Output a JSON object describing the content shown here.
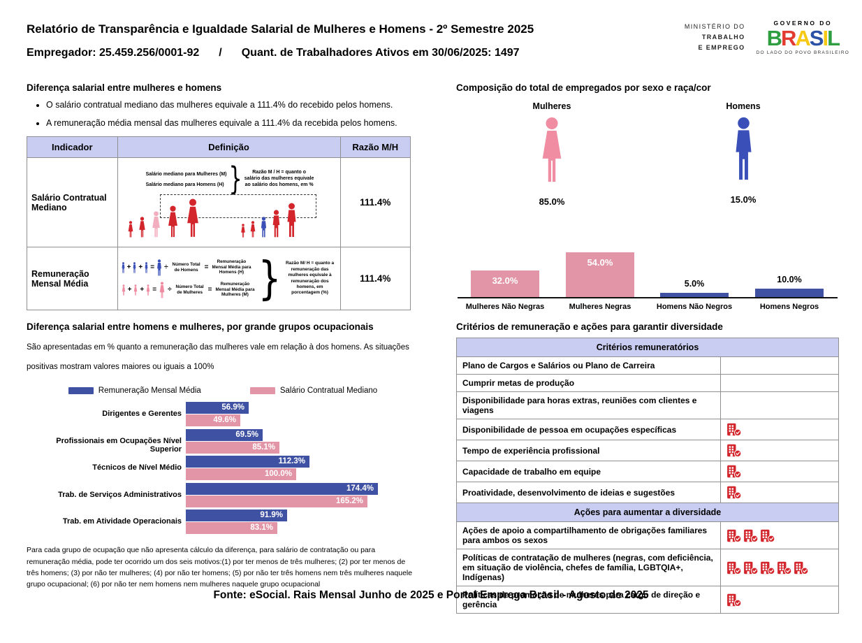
{
  "colors": {
    "blue": "#3F51A3",
    "blue_icon": "#3A50B8",
    "pink": "#E295A6",
    "pink_icon": "#F08DA2",
    "pink_light": "#F2AEBE",
    "red": "#D3262C",
    "header_bg": "#C9CDF1"
  },
  "header": {
    "title": "Relatório de Transparência e Igualdade Salarial de Mulheres e Homens - 2º Semestre 2025",
    "subtitle": {
      "employer": "Empregador: 25.459.256/0001-92",
      "separator": "/",
      "workers": "Quant. de Trabalhadores Ativos em 30/06/2025: 1497"
    },
    "ministry_lines": [
      "MINISTÉRIO DO",
      "TRABALHO",
      "E EMPREGO"
    ],
    "gov": {
      "top": "GOVERNO DO",
      "name": "BRASIL",
      "letter_colors": [
        "#2F9E41",
        "#E23B30",
        "#F6C915",
        "#2B52A5",
        "#F6C915",
        "#2F9E41"
      ],
      "tagline": "DO LADO DO POVO BRASILEIRO"
    }
  },
  "pay_gap": {
    "title": "Diferença salarial entre mulheres e homens",
    "bullets": [
      "O salário contratual mediano das mulheres equivale a 111.4% do recebido pelos homens.",
      "A remuneração média mensal das mulheres equivale a 111.4% da recebida pelos homens."
    ],
    "operators": {
      "plus": "+",
      "equals": "=",
      "divide": "÷",
      "brace": "}"
    },
    "table": {
      "headers": [
        "Indicador",
        "Definição",
        "Razão M/H"
      ],
      "rows": [
        {
          "indicator": "Salário Contratual Mediano",
          "definition": {
            "line1": "Salário mediano para Mulheres (M)",
            "line2": "Salário mediano para Homens (H)",
            "note": "Razão M / H = quanto o salário das mulheres equivale ao salário dos homens, em %"
          },
          "ratio": "111.4%"
        },
        {
          "indicator": "Remuneração Mensal Média",
          "definition": {
            "men_divisor": "Número Total de Homens",
            "men_result": "Remuneração Mensal Média para Homens (H)",
            "women_divisor": "Número Total de Mulheres",
            "women_result": "Remuneração Mensal Média para Mulheres (M)",
            "note": "Razão M/ H = quanto a remuneração das mulheres equivale à remuneração dos homens, em porcentagem (%)"
          },
          "ratio": "111.4%"
        }
      ]
    }
  },
  "composition": {
    "title": "Composição do total de empregados por sexo e raça/cor",
    "groups": [
      {
        "label": "Mulheres",
        "value": "85.0%"
      },
      {
        "label": "Homens",
        "value": "15.0%"
      }
    ],
    "chart_data": {
      "type": "bar",
      "categories": [
        "Mulheres Não Negras",
        "Mulheres Negras",
        "Homens Não Negros",
        "Homens Negros"
      ],
      "values": [
        32.0,
        54.0,
        5.0,
        10.0
      ],
      "labels": [
        "32.0%",
        "54.0%",
        "5.0%",
        "10.0%"
      ],
      "bar_color_keys": [
        "pink",
        "pink",
        "blue",
        "blue"
      ],
      "ylim": [
        0,
        100
      ],
      "grid": false
    }
  },
  "occupational": {
    "title": "Diferença salarial entre homens e mulheres, por grande grupos ocupacionais",
    "note": "São apresentadas em % quanto a remuneração das mulheres vale em relação à dos homens. As situações positivas mostram valores maiores ou iguais a 100%",
    "chart_data": {
      "type": "bar",
      "orientation": "horizontal",
      "categories": [
        "Dirigentes e Gerentes",
        "Profissionais em Ocupações Nível Superior",
        "Técnicos de Nível Médio",
        "Trab. de Serviços Administrativos",
        "Trab. em Atividade Operacionais"
      ],
      "series": [
        {
          "name": "Remuneração Mensal Média",
          "color_key": "blue",
          "values": [
            56.9,
            69.5,
            112.3,
            174.4,
            91.9
          ],
          "labels": [
            "56.9%",
            "69.5%",
            "112.3%",
            "174.4%",
            "91.9%"
          ]
        },
        {
          "name": "Salário Contratual Mediano",
          "color_key": "pink",
          "values": [
            49.6,
            85.1,
            100.0,
            165.2,
            83.1
          ],
          "labels": [
            "49.6%",
            "85.1%",
            "100.0%",
            "165.2%",
            "83.1%"
          ]
        }
      ],
      "xlim": [
        0,
        180
      ],
      "legend_position": "top",
      "grid": false
    },
    "footnote": "Para cada grupo de ocupação que não apresenta cálculo da diferença, para salário de contratação ou para remuneração média, pode ter ocorrido um dos seis motivos:(1) por ter menos de três mulheres; (2) por ter menos de três homens; (3) por não ter mulheres; (4) por não ter homens; (5) por não ter três homens nem três mulheres naquele grupo ocupacional; (6) por não ter nem homens nem mulheres naquele grupo ocupacional"
  },
  "criteria": {
    "title": "Critérios de remuneração e ações para garantir diversidade",
    "sections": [
      {
        "header": "Critérios remuneratórios",
        "rows": [
          {
            "label": "Plano de Cargos e Salários ou Plano de Carreira",
            "icons": 0
          },
          {
            "label": "Cumprir metas de produção",
            "icons": 0
          },
          {
            "label": "Disponibilidade para horas extras, reuniões com clientes e viagens",
            "icons": 0
          },
          {
            "label": "Disponibilidade de pessoa em ocupações específicas",
            "icons": 1
          },
          {
            "label": "Tempo de experiência profissional",
            "icons": 1
          },
          {
            "label": "Capacidade de trabalho em equipe",
            "icons": 1
          },
          {
            "label": "Proatividade, desenvolvimento de ideias e sugestões",
            "icons": 1
          }
        ]
      },
      {
        "header": "Ações para aumentar a diversidade",
        "rows": [
          {
            "label": "Ações de apoio a compartilhamento de obrigações familiares para ambos os sexos",
            "icons": 3
          },
          {
            "label": "Políticas de contratação de mulheres (negras, com deficiência, em situação de violência, chefes de família, LGBTQIA+, Indígenas)",
            "icons": 5
          },
          {
            "label": "Políticas de promoção de mulheres para cargo de direção e gerência",
            "icons": 1
          }
        ]
      }
    ]
  },
  "footer": {
    "source": "Fonte: eSocial. Rais Mensal Junho de 2025 e Portal Emprega Brasil - Agosto de 2025"
  }
}
